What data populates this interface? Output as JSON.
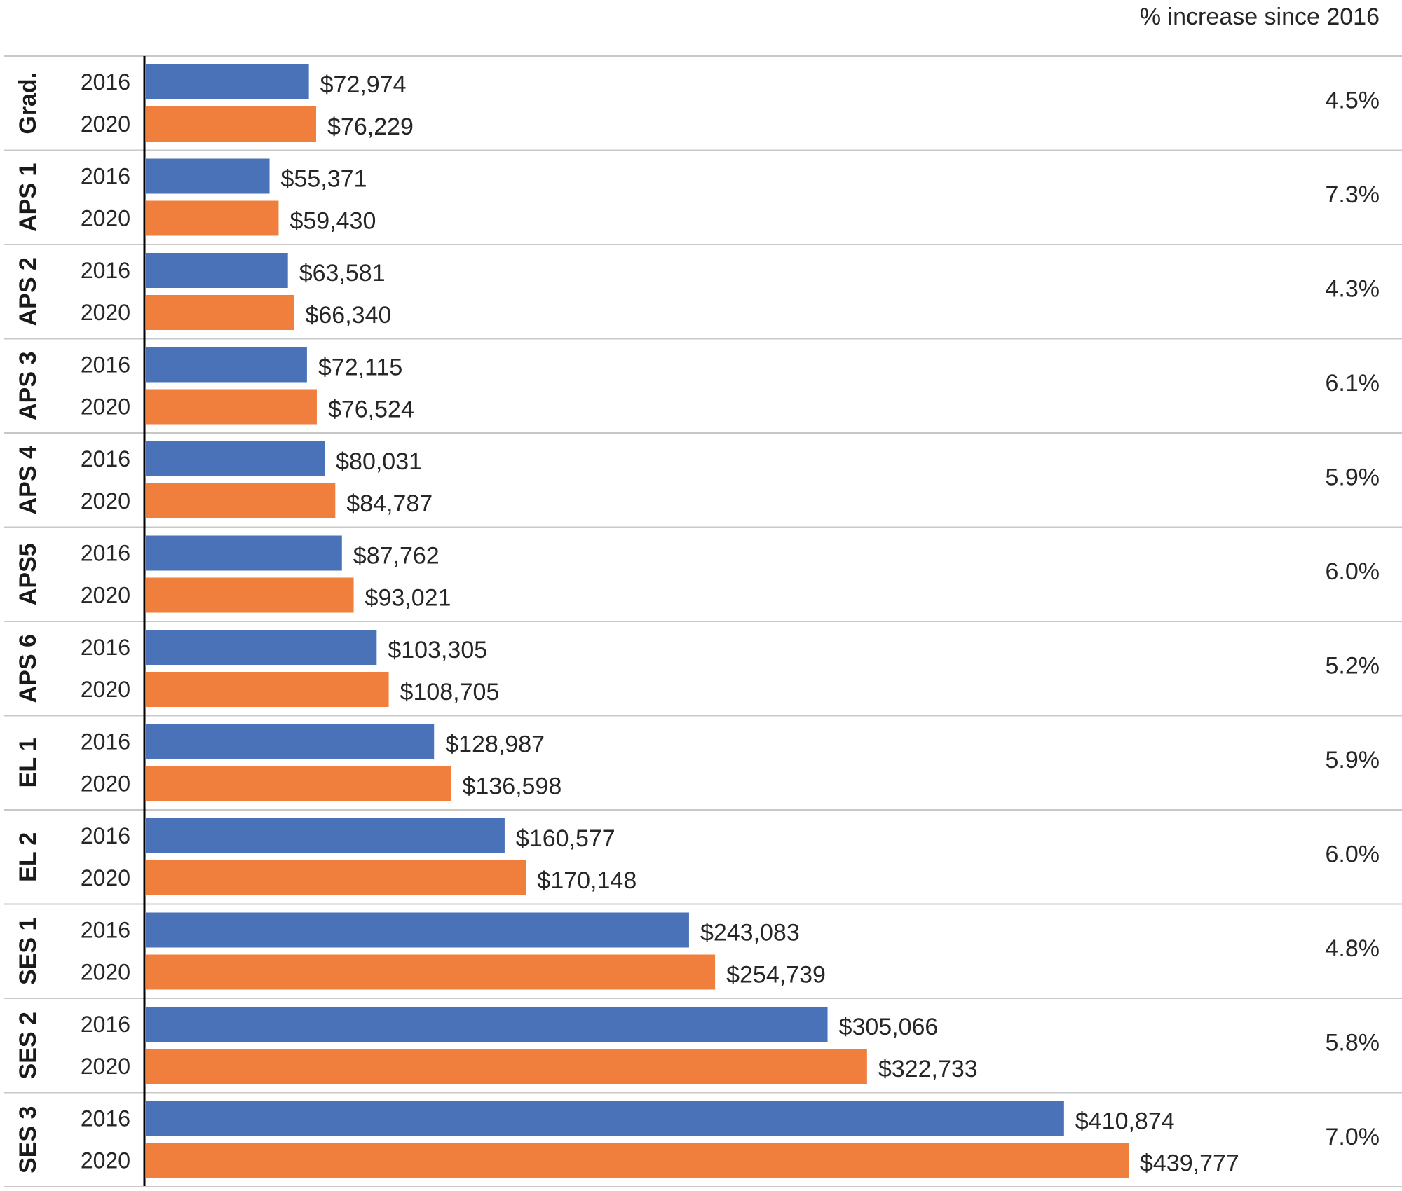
{
  "chart_data": {
    "type": "bar",
    "orientation": "horizontal",
    "header": "% increase since 2016",
    "categories": [
      "Grad.",
      "APS 1",
      "APS 2",
      "APS 3",
      "APS 4",
      "APS5",
      "APS 6",
      "EL 1",
      "EL 2",
      "SES 1",
      "SES 2",
      "SES 3"
    ],
    "series": [
      {
        "name": "2016",
        "color": "#4a72b8",
        "values": [
          72974,
          55371,
          63581,
          72115,
          80031,
          87762,
          103305,
          128987,
          160577,
          243083,
          305066,
          410874
        ],
        "labels": [
          "$72,974",
          "$55,371",
          "$63,581",
          "$72,115",
          "$80,031",
          "$87,762",
          "$103,305",
          "$128,987",
          "$160,577",
          "$243,083",
          "$305,066",
          "$410,874"
        ]
      },
      {
        "name": "2020",
        "color": "#f07f3e",
        "values": [
          76229,
          59430,
          66340,
          76524,
          84787,
          93021,
          108705,
          136598,
          170148,
          254739,
          322733,
          439777
        ],
        "labels": [
          "$76,229",
          "$59,430",
          "$66,340",
          "$76,524",
          "$84,787",
          "$93,021",
          "$108,705",
          "$136,598",
          "$170,148",
          "$254,739",
          "$322,733",
          "$439,777"
        ]
      }
    ],
    "pct_increase": [
      "4.5%",
      "7.3%",
      "4.3%",
      "6.1%",
      "5.9%",
      "6.0%",
      "5.2%",
      "5.9%",
      "6.0%",
      "4.8%",
      "5.8%",
      "7.0%"
    ],
    "xlim": [
      0,
      470000
    ],
    "grid": false,
    "legend": "none"
  }
}
